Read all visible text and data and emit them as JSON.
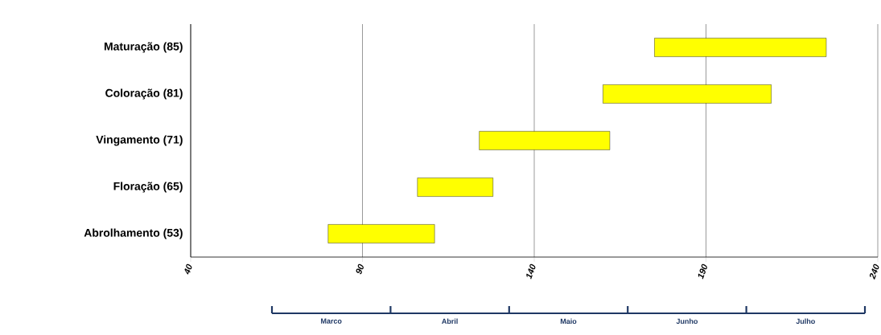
{
  "chart_data": {
    "type": "bar",
    "orientation": "horizontal",
    "categories": [
      "Maturação (85)",
      "Coloração (81)",
      "Vingamento (71)",
      "Floração (65)",
      "Abrolhamento (53)"
    ],
    "base": [
      175,
      160,
      124,
      106,
      80
    ],
    "values": [
      50,
      49,
      38,
      22,
      31
    ],
    "color": "#ffff00",
    "xlim": [
      40,
      240
    ],
    "xticks": [
      40,
      90,
      140,
      190,
      240
    ],
    "annotations": [
      "Marco",
      "Abril",
      "Maio",
      "Junho",
      "Julho"
    ],
    "grid": "x"
  }
}
